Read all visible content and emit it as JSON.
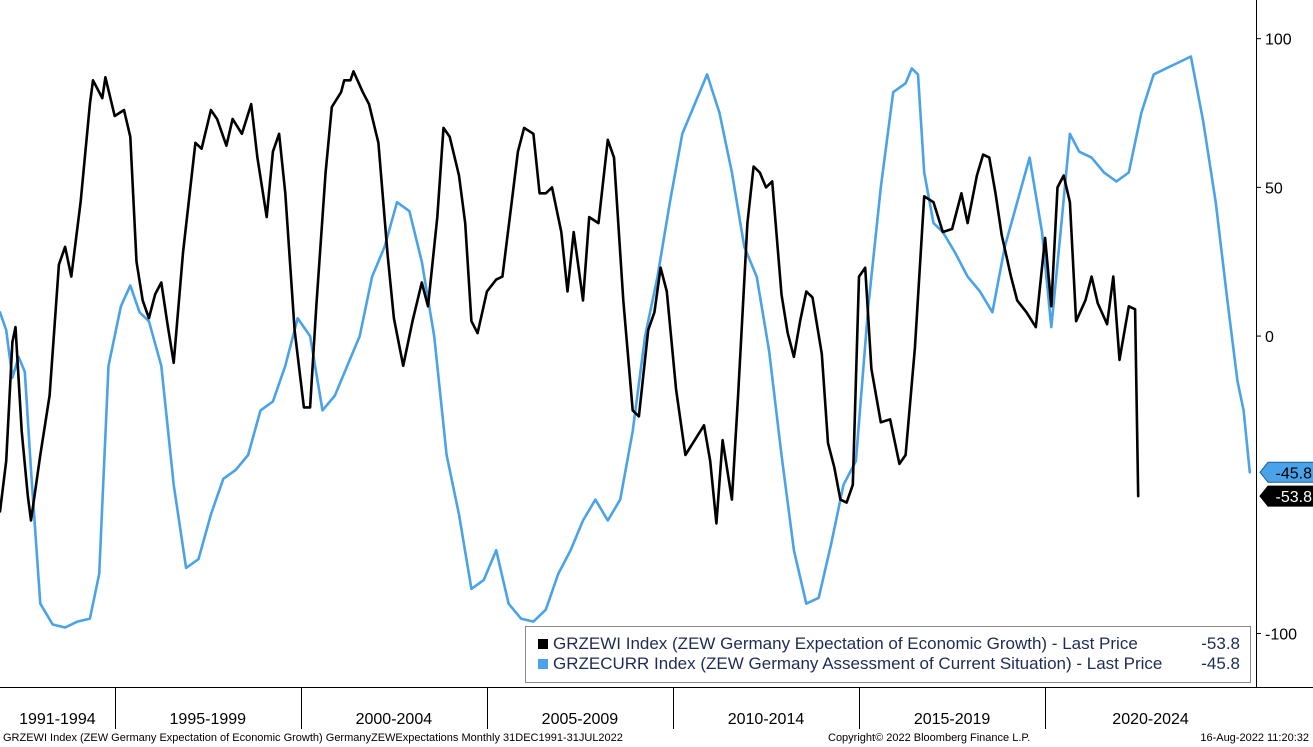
{
  "chart_data": {
    "type": "line",
    "x_range": [
      "1991-12",
      "2025-09"
    ],
    "ylim": [
      -118,
      113
    ],
    "y_ticks": [
      100,
      50,
      0,
      -100
    ],
    "x_period_labels": [
      "1991-1994",
      "1995-1999",
      "2000-2004",
      "2005-2009",
      "2010-2014",
      "2015-2019",
      "2020-2024"
    ],
    "grid": false,
    "y_axis_side": "right",
    "legend_placement": "bottom-right",
    "series": [
      {
        "name": "GRZEWI Index (ZEW Germany Expectation of Economic Growth) - Last Price",
        "color": "#000000",
        "last_value_label": "-53.8",
        "last_value": -53.8,
        "points": [
          [
            "1991-12",
            -59
          ],
          [
            "1992-02",
            -42
          ],
          [
            "1992-04",
            -2
          ],
          [
            "1992-05",
            3
          ],
          [
            "1992-07",
            -32
          ],
          [
            "1992-09",
            -54
          ],
          [
            "1992-10",
            -62
          ],
          [
            "1993-01",
            -40
          ],
          [
            "1993-04",
            -20
          ],
          [
            "1993-07",
            24
          ],
          [
            "1993-09",
            30
          ],
          [
            "1993-11",
            20
          ],
          [
            "1994-02",
            45
          ],
          [
            "1994-05",
            78
          ],
          [
            "1994-06",
            86
          ],
          [
            "1994-09",
            80
          ],
          [
            "1994-10",
            87
          ],
          [
            "1995-01",
            74
          ],
          [
            "1995-04",
            76
          ],
          [
            "1995-06",
            67
          ],
          [
            "1995-08",
            25
          ],
          [
            "1995-10",
            12
          ],
          [
            "1995-12",
            6
          ],
          [
            "1996-02",
            14
          ],
          [
            "1996-04",
            18
          ],
          [
            "1996-06",
            4
          ],
          [
            "1996-08",
            -9
          ],
          [
            "1996-11",
            28
          ],
          [
            "1997-03",
            65
          ],
          [
            "1997-05",
            63
          ],
          [
            "1997-08",
            76
          ],
          [
            "1997-10",
            73
          ],
          [
            "1998-01",
            64
          ],
          [
            "1998-03",
            73
          ],
          [
            "1998-06",
            68
          ],
          [
            "1998-09",
            78
          ],
          [
            "1998-11",
            60
          ],
          [
            "1999-02",
            40
          ],
          [
            "1999-04",
            62
          ],
          [
            "1999-06",
            68
          ],
          [
            "1999-08",
            48
          ],
          [
            "1999-11",
            2
          ],
          [
            "2000-02",
            -24
          ],
          [
            "2000-04",
            -24
          ],
          [
            "2000-06",
            10
          ],
          [
            "2000-09",
            55
          ],
          [
            "2000-11",
            77
          ],
          [
            "2001-02",
            82
          ],
          [
            "2001-03",
            86
          ],
          [
            "2001-05",
            86
          ],
          [
            "2001-06",
            89
          ],
          [
            "2001-09",
            82
          ],
          [
            "2001-11",
            78
          ],
          [
            "2002-02",
            65
          ],
          [
            "2002-05",
            27
          ],
          [
            "2002-07",
            6
          ],
          [
            "2002-10",
            -10
          ],
          [
            "2003-01",
            5
          ],
          [
            "2003-04",
            18
          ],
          [
            "2003-06",
            10
          ],
          [
            "2003-09",
            40
          ],
          [
            "2003-11",
            70
          ],
          [
            "2004-01",
            67
          ],
          [
            "2004-04",
            54
          ],
          [
            "2004-06",
            38
          ],
          [
            "2004-08",
            5
          ],
          [
            "2004-10",
            1
          ],
          [
            "2005-01",
            15
          ],
          [
            "2005-04",
            19
          ],
          [
            "2005-06",
            20
          ],
          [
            "2005-09",
            45
          ],
          [
            "2005-11",
            62
          ],
          [
            "2006-01",
            70
          ],
          [
            "2006-04",
            68
          ],
          [
            "2006-06",
            48
          ],
          [
            "2006-08",
            48
          ],
          [
            "2006-10",
            50
          ],
          [
            "2007-01",
            35
          ],
          [
            "2007-03",
            15
          ],
          [
            "2007-05",
            35
          ],
          [
            "2007-08",
            12
          ],
          [
            "2007-10",
            40
          ],
          [
            "2008-01",
            38
          ],
          [
            "2008-04",
            66
          ],
          [
            "2008-06",
            60
          ],
          [
            "2008-09",
            12
          ],
          [
            "2008-12",
            -25
          ],
          [
            "2009-02",
            -27
          ],
          [
            "2009-05",
            2
          ],
          [
            "2009-07",
            8
          ],
          [
            "2009-09",
            23
          ],
          [
            "2009-11",
            15
          ],
          [
            "2010-02",
            -18
          ],
          [
            "2010-05",
            -40
          ],
          [
            "2010-08",
            -35
          ],
          [
            "2010-11",
            -30
          ],
          [
            "2011-01",
            -42
          ],
          [
            "2011-03",
            -63
          ],
          [
            "2011-05",
            -35
          ],
          [
            "2011-08",
            -55
          ],
          [
            "2011-10",
            -20
          ],
          [
            "2012-01",
            38
          ],
          [
            "2012-03",
            57
          ],
          [
            "2012-05",
            55
          ],
          [
            "2012-07",
            50
          ],
          [
            "2012-09",
            52
          ],
          [
            "2012-12",
            14
          ],
          [
            "2013-02",
            1
          ],
          [
            "2013-04",
            -7
          ],
          [
            "2013-06",
            5
          ],
          [
            "2013-08",
            15
          ],
          [
            "2013-10",
            13
          ],
          [
            "2014-01",
            -6
          ],
          [
            "2014-03",
            -36
          ],
          [
            "2014-05",
            -44
          ],
          [
            "2014-07",
            -55
          ],
          [
            "2014-09",
            -56
          ],
          [
            "2014-11",
            -50
          ],
          [
            "2015-01",
            20
          ],
          [
            "2015-03",
            23
          ],
          [
            "2015-05",
            -11
          ],
          [
            "2015-08",
            -29
          ],
          [
            "2015-11",
            -28
          ],
          [
            "2016-02",
            -43
          ],
          [
            "2016-04",
            -40
          ],
          [
            "2016-07",
            -4
          ],
          [
            "2016-10",
            47
          ],
          [
            "2017-01",
            45
          ],
          [
            "2017-04",
            35
          ],
          [
            "2017-07",
            36
          ],
          [
            "2017-10",
            48
          ],
          [
            "2017-12",
            38
          ],
          [
            "2018-03",
            54
          ],
          [
            "2018-05",
            61
          ],
          [
            "2018-07",
            60
          ],
          [
            "2018-09",
            48
          ],
          [
            "2018-11",
            34
          ],
          [
            "2019-02",
            20
          ],
          [
            "2019-04",
            12
          ],
          [
            "2019-07",
            8
          ],
          [
            "2019-10",
            3
          ],
          [
            "2020-01",
            33
          ],
          [
            "2020-03",
            10
          ],
          [
            "2020-05",
            50
          ],
          [
            "2020-07",
            54
          ],
          [
            "2020-09",
            45
          ],
          [
            "2020-11",
            5
          ],
          [
            "2021-02",
            12
          ],
          [
            "2021-04",
            20
          ],
          [
            "2021-06",
            11
          ],
          [
            "2021-09",
            4
          ],
          [
            "2021-11",
            20
          ],
          [
            "2022-01",
            -8
          ],
          [
            "2022-04",
            10
          ],
          [
            "2022-06",
            9
          ],
          [
            "2022-07",
            -53.8
          ]
        ]
      },
      {
        "name": "GRZECURR Index (ZEW Germany Assessment of Current Situation) - Last Price",
        "color": "#4aa3e8",
        "last_value_label": "-45.8",
        "last_value": -45.8,
        "points": [
          [
            "1991-12",
            8
          ],
          [
            "1992-02",
            2
          ],
          [
            "1992-04",
            -14
          ],
          [
            "1992-06",
            -7
          ],
          [
            "1992-08",
            -12
          ],
          [
            "1992-10",
            -45
          ],
          [
            "1993-01",
            -90
          ],
          [
            "1993-05",
            -97
          ],
          [
            "1993-09",
            -98
          ],
          [
            "1994-01",
            -96
          ],
          [
            "1994-05",
            -95
          ],
          [
            "1994-08",
            -80
          ],
          [
            "1994-11",
            -10
          ],
          [
            "1995-03",
            10
          ],
          [
            "1995-06",
            17
          ],
          [
            "1995-09",
            8
          ],
          [
            "1995-12",
            5
          ],
          [
            "1996-04",
            -10
          ],
          [
            "1996-08",
            -50
          ],
          [
            "1996-12",
            -78
          ],
          [
            "1997-04",
            -75
          ],
          [
            "1997-08",
            -60
          ],
          [
            "1997-12",
            -48
          ],
          [
            "1998-04",
            -45
          ],
          [
            "1998-08",
            -40
          ],
          [
            "1998-12",
            -25
          ],
          [
            "1999-04",
            -22
          ],
          [
            "1999-08",
            -10
          ],
          [
            "1999-12",
            6
          ],
          [
            "2000-04",
            0
          ],
          [
            "2000-08",
            -25
          ],
          [
            "2000-12",
            -20
          ],
          [
            "2001-04",
            -10
          ],
          [
            "2001-08",
            0
          ],
          [
            "2001-12",
            20
          ],
          [
            "2002-04",
            30
          ],
          [
            "2002-08",
            45
          ],
          [
            "2002-12",
            42
          ],
          [
            "2003-04",
            25
          ],
          [
            "2003-08",
            0
          ],
          [
            "2003-12",
            -40
          ],
          [
            "2004-04",
            -60
          ],
          [
            "2004-08",
            -85
          ],
          [
            "2004-12",
            -82
          ],
          [
            "2005-04",
            -72
          ],
          [
            "2005-08",
            -90
          ],
          [
            "2005-12",
            -95
          ],
          [
            "2006-04",
            -96
          ],
          [
            "2006-08",
            -92
          ],
          [
            "2006-12",
            -80
          ],
          [
            "2007-04",
            -72
          ],
          [
            "2007-08",
            -62
          ],
          [
            "2007-12",
            -55
          ],
          [
            "2008-04",
            -62
          ],
          [
            "2008-08",
            -55
          ],
          [
            "2008-12",
            -32
          ],
          [
            "2009-04",
            0
          ],
          [
            "2009-08",
            20
          ],
          [
            "2009-12",
            45
          ],
          [
            "2010-04",
            68
          ],
          [
            "2010-08",
            78
          ],
          [
            "2010-12",
            88
          ],
          [
            "2011-04",
            75
          ],
          [
            "2011-08",
            55
          ],
          [
            "2011-12",
            30
          ],
          [
            "2012-04",
            20
          ],
          [
            "2012-08",
            -5
          ],
          [
            "2012-12",
            -40
          ],
          [
            "2013-04",
            -72
          ],
          [
            "2013-08",
            -90
          ],
          [
            "2013-12",
            -88
          ],
          [
            "2014-04",
            -70
          ],
          [
            "2014-08",
            -50
          ],
          [
            "2014-12",
            -42
          ],
          [
            "2015-04",
            10
          ],
          [
            "2015-08",
            50
          ],
          [
            "2015-12",
            82
          ],
          [
            "2016-04",
            85
          ],
          [
            "2016-06",
            90
          ],
          [
            "2016-08",
            88
          ],
          [
            "2016-10",
            55
          ],
          [
            "2017-01",
            38
          ],
          [
            "2017-04",
            35
          ],
          [
            "2017-08",
            28
          ],
          [
            "2017-12",
            20
          ],
          [
            "2018-04",
            15
          ],
          [
            "2018-08",
            8
          ],
          [
            "2018-12",
            30
          ],
          [
            "2019-04",
            45
          ],
          [
            "2019-08",
            60
          ],
          [
            "2019-12",
            35
          ],
          [
            "2020-03",
            3
          ],
          [
            "2020-06",
            35
          ],
          [
            "2020-09",
            68
          ],
          [
            "2020-12",
            62
          ],
          [
            "2021-04",
            60
          ],
          [
            "2021-08",
            55
          ],
          [
            "2021-12",
            52
          ],
          [
            "2022-04",
            55
          ],
          [
            "2022-08",
            75
          ],
          [
            "2022-12",
            88
          ],
          [
            "2023-04",
            90
          ],
          [
            "2023-08",
            92
          ],
          [
            "2023-12",
            94
          ],
          [
            "2024-04",
            72
          ],
          [
            "2024-08",
            45
          ],
          [
            "2024-12",
            10
          ],
          [
            "2025-03",
            -15
          ],
          [
            "2025-05",
            -25
          ],
          [
            "2025-07",
            -45.8
          ]
        ]
      }
    ]
  },
  "legend": {
    "items": [
      {
        "label": "GRZEWI Index (ZEW Germany Expectation of Economic Growth) - Last Price",
        "value": "-53.8",
        "color": "#000000"
      },
      {
        "label": "GRZECURR Index (ZEW Germany Assessment of Current Situation) - Last Price",
        "value": "-45.8",
        "color": "#4aa3e8"
      }
    ]
  },
  "footer": {
    "left": "GRZEWI Index (ZEW Germany Expectation of Economic Growth) GermanyZEWExpectations  Monthly 31DEC1991-31JUL2022",
    "center": "Copyright© 2022 Bloomberg Finance L.P.",
    "right": "16-Aug-2022 11:20:32"
  }
}
